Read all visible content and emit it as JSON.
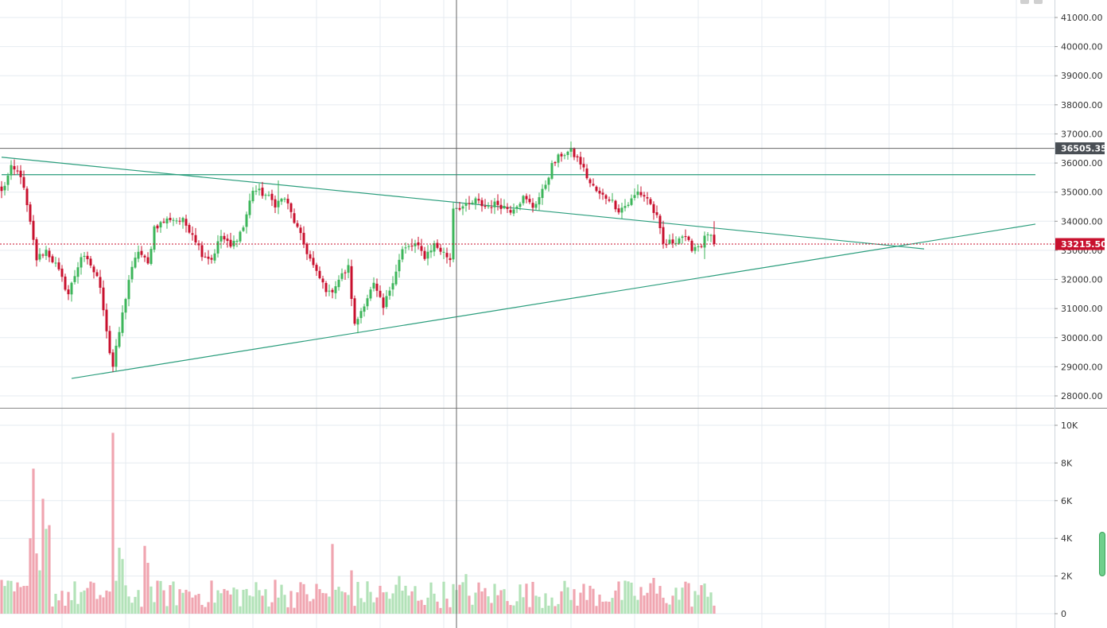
{
  "chart_data": {
    "type": "candlestick",
    "price_axis": {
      "ylim": [
        27700,
        41400
      ],
      "ticks": [
        "41000.00",
        "40000.00",
        "39000.00",
        "38000.00",
        "37000.00",
        "36000.00",
        "35000.00",
        "34000.00",
        "33000.00",
        "32000.00",
        "31000.00",
        "30000.00",
        "29000.00",
        "28000.00"
      ],
      "tick_values": [
        41000,
        40000,
        39000,
        38000,
        37000,
        36000,
        35000,
        34000,
        33000,
        32000,
        31000,
        30000,
        29000,
        28000
      ]
    },
    "volume_axis": {
      "ylim": [
        0,
        10500
      ],
      "ticks": [
        "10K",
        "8K",
        "6K",
        "4K",
        "2K",
        "0"
      ],
      "tick_values": [
        10000,
        8000,
        6000,
        4000,
        2000,
        0
      ]
    },
    "crosshair_price": {
      "label": "36505.35",
      "value": 36505.35
    },
    "last_price": {
      "label": "33215.50",
      "value": 33215.5
    },
    "colors": {
      "up": "#3cb55a",
      "down": "#c8102e",
      "vol_up": "#b2e2b8",
      "vol_down": "#f0a5b0",
      "trendline": "#2a9d7c",
      "grid": "#e6ebf0",
      "crosshair": "#666666",
      "last_price": "#c8102e"
    },
    "anchors": [
      [
        0,
        35000
      ],
      [
        3,
        35800
      ],
      [
        6,
        35600
      ],
      [
        8,
        34500
      ],
      [
        11,
        32700
      ],
      [
        14,
        33000
      ],
      [
        17,
        32500
      ],
      [
        21,
        31500
      ],
      [
        25,
        32800
      ],
      [
        28,
        32500
      ],
      [
        31,
        31800
      ],
      [
        34,
        29500
      ],
      [
        35,
        29000
      ],
      [
        37,
        30200
      ],
      [
        40,
        32000
      ],
      [
        43,
        33000
      ],
      [
        46,
        32500
      ],
      [
        48,
        33800
      ],
      [
        53,
        34100
      ],
      [
        57,
        34000
      ],
      [
        60,
        33600
      ],
      [
        63,
        32900
      ],
      [
        66,
        32700
      ],
      [
        69,
        33500
      ],
      [
        72,
        33100
      ],
      [
        76,
        33800
      ],
      [
        79,
        35100
      ],
      [
        83,
        34900
      ],
      [
        86,
        34600
      ],
      [
        89,
        34800
      ],
      [
        92,
        34000
      ],
      [
        95,
        33200
      ],
      [
        99,
        32200
      ],
      [
        103,
        31500
      ],
      [
        106,
        32000
      ],
      [
        109,
        32400
      ],
      [
        111,
        30400
      ],
      [
        114,
        31200
      ],
      [
        117,
        31800
      ],
      [
        120,
        31000
      ],
      [
        123,
        32000
      ],
      [
        126,
        33000
      ],
      [
        130,
        33200
      ],
      [
        133,
        32800
      ],
      [
        136,
        33200
      ],
      [
        139,
        32900
      ],
      [
        141,
        32700
      ],
      [
        142,
        34500
      ],
      [
        146,
        34500
      ],
      [
        149,
        34700
      ],
      [
        152,
        34500
      ],
      [
        156,
        34600
      ],
      [
        160,
        34400
      ],
      [
        164,
        34800
      ],
      [
        167,
        34500
      ],
      [
        170,
        35000
      ],
      [
        173,
        35900
      ],
      [
        176,
        36300
      ],
      [
        179,
        36400
      ],
      [
        182,
        36000
      ],
      [
        185,
        35300
      ],
      [
        188,
        34900
      ],
      [
        191,
        34800
      ],
      [
        194,
        34400
      ],
      [
        197,
        34600
      ],
      [
        200,
        35000
      ],
      [
        203,
        34800
      ],
      [
        206,
        34100
      ],
      [
        208,
        33200
      ],
      [
        211,
        33300
      ],
      [
        214,
        33500
      ],
      [
        217,
        33100
      ],
      [
        220,
        33200
      ],
      [
        222,
        33600
      ],
      [
        224,
        33215
      ]
    ],
    "volume_spikes": [
      [
        9,
        4000
      ],
      [
        10,
        7700
      ],
      [
        11,
        3200
      ],
      [
        12,
        2300
      ],
      [
        13,
        6100
      ],
      [
        14,
        4500
      ],
      [
        15,
        4700
      ],
      [
        35,
        9600
      ],
      [
        37,
        3500
      ],
      [
        38,
        2900
      ],
      [
        45,
        3600
      ],
      [
        46,
        2700
      ],
      [
        56,
        1300
      ],
      [
        86,
        1800
      ],
      [
        104,
        3700
      ],
      [
        110,
        2300
      ],
      [
        125,
        2000
      ],
      [
        146,
        2100
      ],
      [
        205,
        1900
      ],
      [
        215,
        1700
      ],
      [
        222,
        900
      ]
    ],
    "trendlines": [
      {
        "from": [
          0,
          36200
        ],
        "to": [
          290,
          33050
        ]
      },
      {
        "from": [
          22,
          28600
        ],
        "to": [
          325,
          33900
        ]
      },
      {
        "from": [
          0,
          35600
        ],
        "to": [
          325,
          35600
        ]
      }
    ],
    "crosshair_x_bar": 143
  }
}
